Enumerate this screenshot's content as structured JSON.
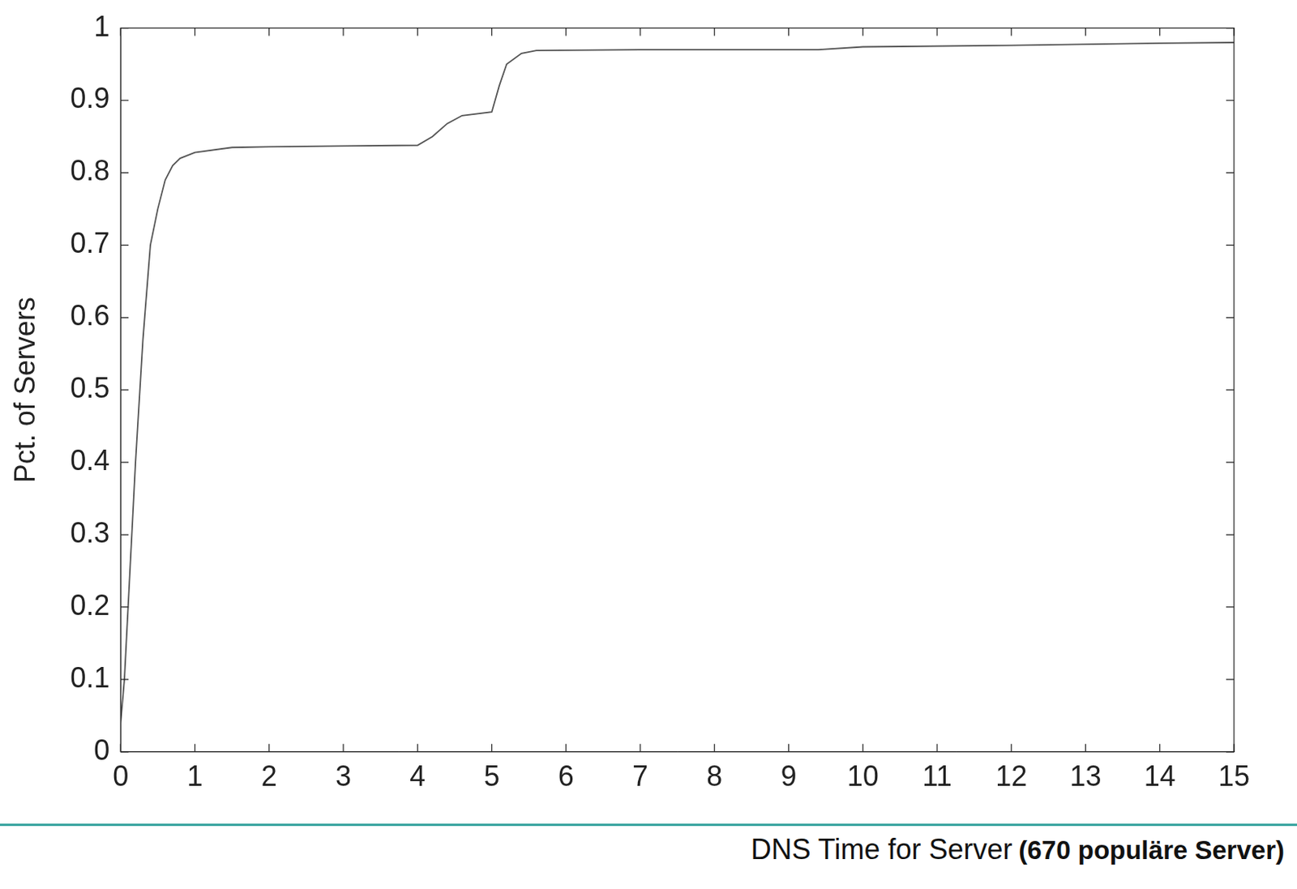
{
  "chart_data": {
    "type": "line",
    "xlabel": "DNS Time for Server",
    "annotation": "(670 populäre Server)",
    "ylabel": "Pct. of Servers",
    "x": [
      0,
      0.05,
      0.1,
      0.2,
      0.3,
      0.4,
      0.5,
      0.6,
      0.7,
      0.8,
      1,
      1.5,
      2,
      3,
      4,
      4.2,
      4.4,
      4.6,
      5,
      5.1,
      5.2,
      5.4,
      5.6,
      7,
      9.4,
      10,
      12,
      14,
      15
    ],
    "values": [
      0.04,
      0.1,
      0.2,
      0.4,
      0.57,
      0.7,
      0.75,
      0.79,
      0.81,
      0.82,
      0.828,
      0.835,
      0.836,
      0.837,
      0.838,
      0.85,
      0.868,
      0.879,
      0.884,
      0.92,
      0.95,
      0.965,
      0.969,
      0.97,
      0.97,
      0.974,
      0.976,
      0.979,
      0.98
    ],
    "color": "#555555",
    "xlim": [
      0,
      15
    ],
    "xticks": [
      0,
      1,
      2,
      3,
      4,
      5,
      6,
      7,
      8,
      9,
      10,
      11,
      12,
      13,
      14,
      15
    ],
    "ylim": [
      0,
      1
    ],
    "yticks": [
      0,
      0.1,
      0.2,
      0.3,
      0.4,
      0.5,
      0.6,
      0.7,
      0.8,
      0.9,
      1
    ],
    "grid": false
  }
}
